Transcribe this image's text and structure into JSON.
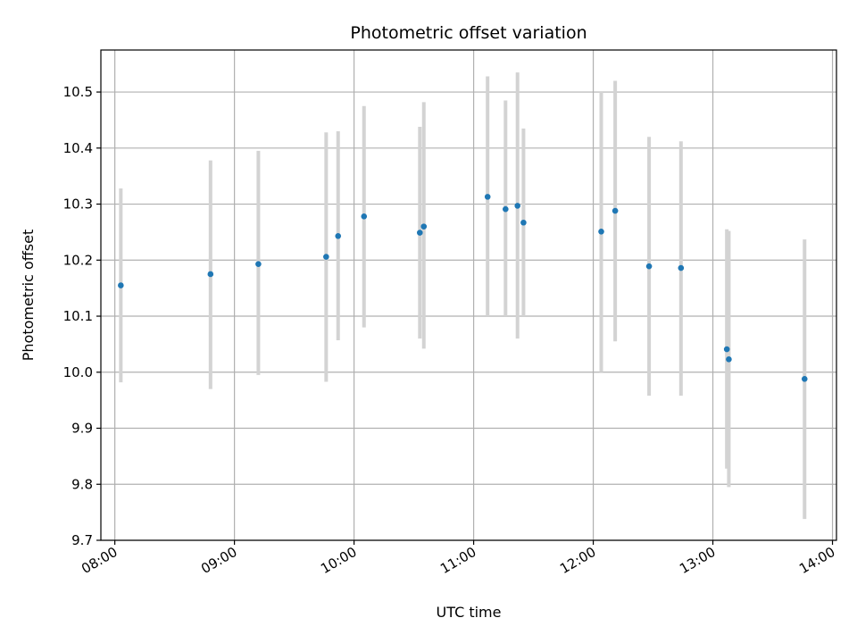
{
  "chart_data": {
    "type": "scatter",
    "title": "Photometric offset variation",
    "xlabel": "UTC time",
    "ylabel": "Photometric offset",
    "x_tick_labels": [
      "08:00",
      "09:00",
      "10:00",
      "11:00",
      "12:00",
      "13:00",
      "14:00"
    ],
    "y_tick_labels": [
      "9.7",
      "9.8",
      "9.9",
      "10.0",
      "10.1",
      "10.2",
      "10.3",
      "10.4",
      "10.5"
    ],
    "ylim": [
      9.7,
      10.575
    ],
    "xlim": [
      "07:53",
      "14:02"
    ],
    "grid": true,
    "marker_color": "#1f77b4",
    "errorbar_color": "#d3d3d3",
    "points": [
      {
        "x": "08:03",
        "y": 10.155,
        "low": 9.982,
        "high": 10.328
      },
      {
        "x": "08:48",
        "y": 10.175,
        "low": 9.97,
        "high": 10.378
      },
      {
        "x": "09:12",
        "y": 10.193,
        "low": 9.995,
        "high": 10.395
      },
      {
        "x": "09:46",
        "y": 10.206,
        "low": 9.983,
        "high": 10.428
      },
      {
        "x": "09:52",
        "y": 10.243,
        "low": 10.057,
        "high": 10.43
      },
      {
        "x": "10:05",
        "y": 10.278,
        "low": 10.08,
        "high": 10.475
      },
      {
        "x": "10:33",
        "y": 10.249,
        "low": 10.06,
        "high": 10.438
      },
      {
        "x": "10:35",
        "y": 10.26,
        "low": 10.042,
        "high": 10.482
      },
      {
        "x": "11:07",
        "y": 10.313,
        "low": 10.1,
        "high": 10.528
      },
      {
        "x": "11:16",
        "y": 10.291,
        "low": 10.1,
        "high": 10.485
      },
      {
        "x": "11:22",
        "y": 10.297,
        "low": 10.06,
        "high": 10.535
      },
      {
        "x": "11:25",
        "y": 10.267,
        "low": 10.1,
        "high": 10.435
      },
      {
        "x": "12:04",
        "y": 10.251,
        "low": 10.0,
        "high": 10.5
      },
      {
        "x": "12:11",
        "y": 10.288,
        "low": 10.055,
        "high": 10.52
      },
      {
        "x": "12:28",
        "y": 10.189,
        "low": 9.958,
        "high": 10.42
      },
      {
        "x": "12:44",
        "y": 10.186,
        "low": 9.958,
        "high": 10.412
      },
      {
        "x": "13:07",
        "y": 10.041,
        "low": 9.828,
        "high": 10.255
      },
      {
        "x": "13:08",
        "y": 10.023,
        "low": 9.795,
        "high": 10.252
      },
      {
        "x": "13:46",
        "y": 9.988,
        "low": 9.738,
        "high": 10.237
      }
    ]
  }
}
